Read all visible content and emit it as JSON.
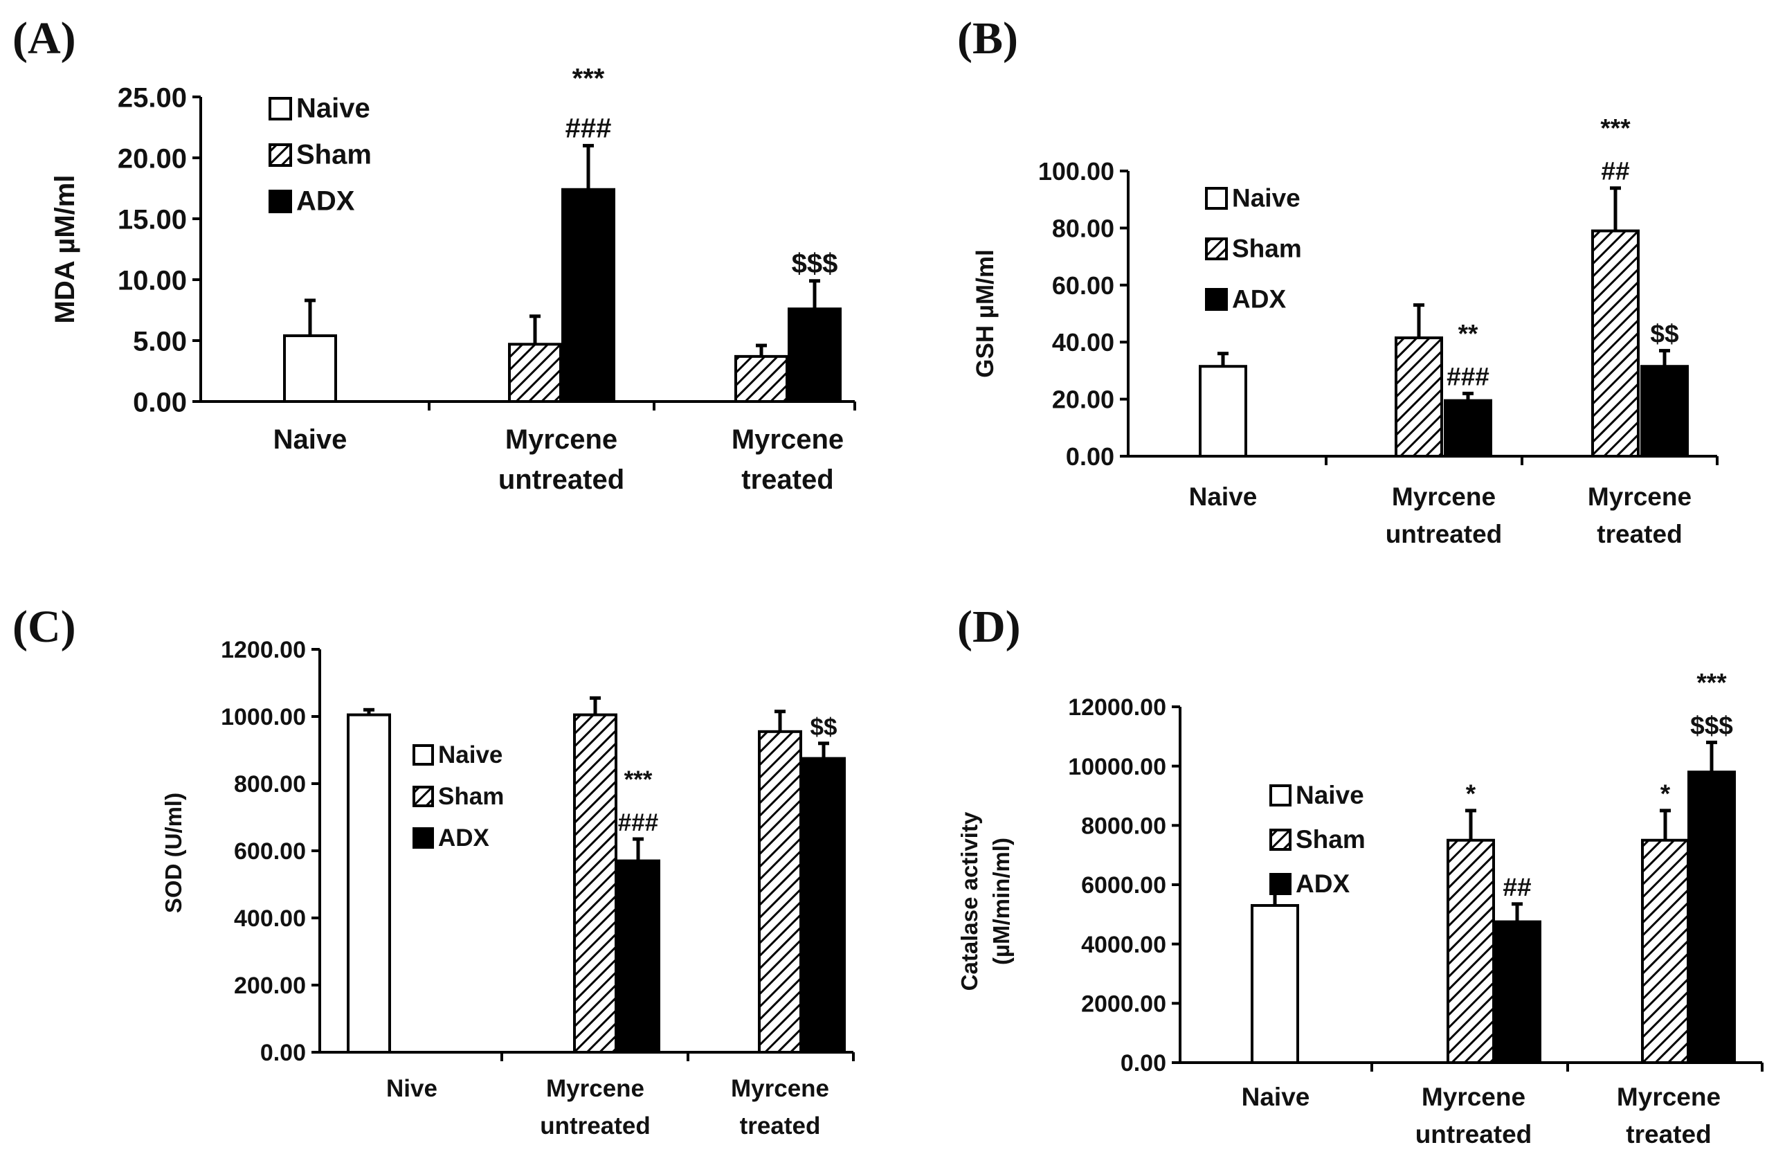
{
  "panel_labels": [
    "(A)",
    "(B)",
    "(C)",
    "(D)"
  ],
  "chart_data": [
    {
      "type": "bar",
      "panel": "(A)",
      "title": "",
      "xlabel": "",
      "ylabel": "MDA  µM/ml",
      "ylim": [
        0,
        25
      ],
      "yticks": [
        "0.00",
        "5.00",
        "10.00",
        "15.00",
        "20.00",
        "25.00"
      ],
      "categories": [
        [
          "Naive"
        ],
        [
          "Myrcene",
          "untreated"
        ],
        [
          "Myrcene",
          "treated"
        ]
      ],
      "legend": [
        "Naive",
        "Sham",
        "ADX"
      ],
      "legend_position": "top-left",
      "bars": [
        {
          "group": 0,
          "series": "Naive",
          "value": 5.4,
          "error": 2.9
        },
        {
          "group": 1,
          "series": "Sham",
          "value": 4.7,
          "error": 2.3
        },
        {
          "group": 1,
          "series": "ADX",
          "value": 17.4,
          "error": 3.6
        },
        {
          "group": 2,
          "series": "Sham",
          "value": 3.7,
          "error": 0.9
        },
        {
          "group": 2,
          "series": "ADX",
          "value": 7.6,
          "error": 2.3
        }
      ],
      "annotations": [
        {
          "group": 1,
          "series": "ADX",
          "lines": [
            "***",
            "###"
          ]
        },
        {
          "group": 2,
          "series": "ADX",
          "lines": [
            "$$$"
          ]
        }
      ]
    },
    {
      "type": "bar",
      "panel": "(B)",
      "title": "",
      "xlabel": "",
      "ylabel": "GSH  µM/ml",
      "ylim": [
        0,
        100
      ],
      "yticks": [
        "0.00",
        "20.00",
        "40.00",
        "60.00",
        "80.00",
        "100.00"
      ],
      "categories": [
        [
          "Naive"
        ],
        [
          "Myrcene",
          "untreated"
        ],
        [
          "Myrcene",
          "treated"
        ]
      ],
      "legend": [
        "Naive",
        "Sham",
        "ADX"
      ],
      "legend_position": "top-left",
      "bars": [
        {
          "group": 0,
          "series": "Naive",
          "value": 31.5,
          "error": 4.5
        },
        {
          "group": 1,
          "series": "Sham",
          "value": 41.5,
          "error": 11.5
        },
        {
          "group": 1,
          "series": "ADX",
          "value": 19.5,
          "error": 2.5
        },
        {
          "group": 2,
          "series": "Sham",
          "value": 79.0,
          "error": 15.0
        },
        {
          "group": 2,
          "series": "ADX",
          "value": 31.5,
          "error": 5.5
        }
      ],
      "annotations": [
        {
          "group": 1,
          "series": "ADX",
          "lines": [
            "**",
            "###"
          ]
        },
        {
          "group": 2,
          "series": "Sham",
          "lines": [
            "***",
            "##"
          ]
        },
        {
          "group": 2,
          "series": "ADX",
          "lines": [
            "$$"
          ]
        }
      ]
    },
    {
      "type": "bar",
      "panel": "(C)",
      "title": "",
      "xlabel": "",
      "ylabel": "SOD (U/ml)",
      "ylim": [
        0,
        1200
      ],
      "yticks": [
        "0.00",
        "200.00",
        "400.00",
        "600.00",
        "800.00",
        "1000.00",
        "1200.00"
      ],
      "categories": [
        [
          "Nive"
        ],
        [
          "Myrcene",
          "untreated"
        ],
        [
          "Myrcene",
          "treated"
        ]
      ],
      "legend": [
        "Naive",
        "Sham",
        "ADX"
      ],
      "legend_position": "center",
      "bars": [
        {
          "group": 0,
          "series": "Naive",
          "value": 1005,
          "error": 15
        },
        {
          "group": 1,
          "series": "Sham",
          "value": 1005,
          "error": 50
        },
        {
          "group": 1,
          "series": "ADX",
          "value": 570,
          "error": 65
        },
        {
          "group": 2,
          "series": "Sham",
          "value": 955,
          "error": 60
        },
        {
          "group": 2,
          "series": "ADX",
          "value": 875,
          "error": 45
        }
      ],
      "annotations": [
        {
          "group": 1,
          "series": "ADX",
          "lines": [
            "***",
            "###"
          ]
        },
        {
          "group": 2,
          "series": "ADX",
          "lines": [
            "$$"
          ]
        }
      ]
    },
    {
      "type": "bar",
      "panel": "(D)",
      "title": "",
      "xlabel": "",
      "ylabel": [
        "Catalase activity",
        "(µM/min/ml)"
      ],
      "ylim": [
        0,
        12000
      ],
      "yticks": [
        "0.00",
        "2000.00",
        "4000.00",
        "6000.00",
        "8000.00",
        "10000.00",
        "12000.00"
      ],
      "categories": [
        [
          "Naive"
        ],
        [
          "Myrcene",
          "untreated"
        ],
        [
          "Myrcene",
          "treated"
        ]
      ],
      "legend": [
        "Naive",
        "Sham",
        "ADX"
      ],
      "legend_position": "center",
      "bars": [
        {
          "group": 0,
          "series": "Naive",
          "value": 5300,
          "error": 600
        },
        {
          "group": 1,
          "series": "Sham",
          "value": 7500,
          "error": 1000
        },
        {
          "group": 1,
          "series": "ADX",
          "value": 4750,
          "error": 600
        },
        {
          "group": 2,
          "series": "Sham",
          "value": 7500,
          "error": 1000
        },
        {
          "group": 2,
          "series": "ADX",
          "value": 9800,
          "error": 1000
        }
      ],
      "annotations": [
        {
          "group": 1,
          "series": "Sham",
          "lines": [
            "*"
          ]
        },
        {
          "group": 1,
          "series": "ADX",
          "lines": [
            "##"
          ]
        },
        {
          "group": 2,
          "series": "Sham",
          "lines": [
            "*"
          ]
        },
        {
          "group": 2,
          "series": "ADX",
          "lines": [
            "***",
            "$$$"
          ]
        }
      ]
    }
  ]
}
